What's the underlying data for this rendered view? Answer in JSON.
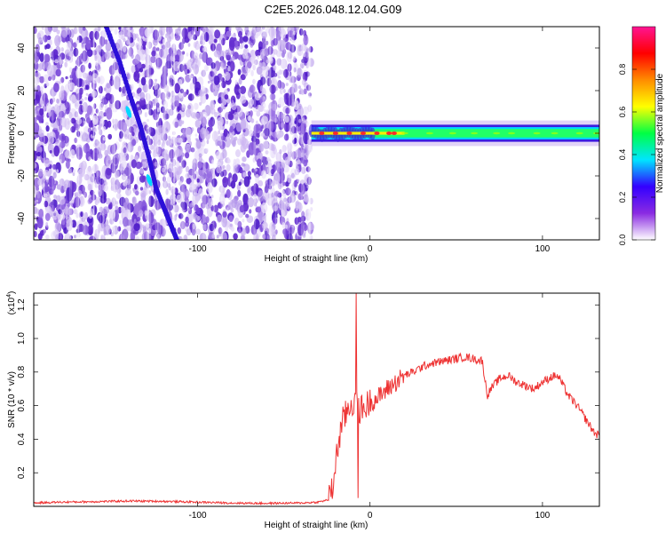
{
  "figure_title": "C2E5.2026.048.12.04.G09",
  "colorbar": {
    "label": "Normalized spectral amplitude",
    "ticks": [
      "0.0",
      "0.2",
      "0.4",
      "0.6",
      "0.8"
    ],
    "tick_values": [
      0.0,
      0.2,
      0.4,
      0.6,
      0.8
    ],
    "range": [
      0.0,
      1.0
    ],
    "colormap": [
      "#ffffff",
      "#8a2be2",
      "#3300ff",
      "#00e5ff",
      "#00ff44",
      "#ffff00",
      "#ff8c00",
      "#ff0000",
      "#ff1493"
    ]
  },
  "chart_data": [
    {
      "type": "heatmap",
      "title": "",
      "xlabel": "Height of straight line (km)",
      "ylabel": "Frequency (Hz)",
      "xlim": [
        -195,
        133
      ],
      "ylim": [
        -50,
        50
      ],
      "x_ticks": [
        -100,
        0,
        100
      ],
      "x_tick_labels": [
        "-100",
        "0",
        "100"
      ],
      "y_ticks": [
        -40,
        -20,
        0,
        20,
        40
      ],
      "y_tick_labels": [
        "-40",
        "-20",
        "0",
        "20",
        "40"
      ],
      "noise_region_x": [
        -195,
        -34
      ],
      "signal_band": {
        "x": [
          -34,
          133
        ],
        "center_hz": 0,
        "halfwidth_hz": 2.5,
        "peak_points_x": [
          -28,
          -20,
          -12,
          -4,
          4,
          11,
          14
        ]
      },
      "meteor_streak": {
        "points": [
          [
            -153,
            50
          ],
          [
            -145,
            33
          ],
          [
            -138,
            15
          ],
          [
            -133,
            3
          ],
          [
            -128,
            -12
          ],
          [
            -124,
            -26
          ],
          [
            -118,
            -38
          ],
          [
            -112,
            -50
          ]
        ],
        "bright_segments": [
          [
            -140,
            10
          ],
          [
            -128,
            -22
          ]
        ]
      },
      "colors": {
        "noise": "#6a2cd6",
        "band": "#22ff66",
        "band_core": "#ff2a2a"
      }
    },
    {
      "type": "line",
      "title": "",
      "xlabel": "Height of straight line (km)",
      "ylabel": "SNR (10 * v/v)",
      "y_scale_label": "(x10",
      "y_scale_exponent": "4",
      "xlim": [
        -195,
        133
      ],
      "ylim": [
        0,
        1.27
      ],
      "x_ticks": [
        -100,
        0,
        100
      ],
      "x_tick_labels": [
        "-100",
        "0",
        "100"
      ],
      "y_ticks": [
        0.2,
        0.4,
        0.6,
        0.8,
        1.0,
        1.2
      ],
      "y_tick_labels": [
        "0.2",
        "0.4",
        "0.6",
        "0.8",
        "1.0",
        "1.2"
      ],
      "series": [
        {
          "color": "#ee3333",
          "x": [
            -195,
            -180,
            -160,
            -140,
            -120,
            -100,
            -80,
            -60,
            -40,
            -30,
            -24,
            -22,
            -20,
            -18,
            -16,
            -14,
            -12,
            -10,
            -8,
            -6,
            -4,
            0,
            5,
            10,
            15,
            20,
            25,
            30,
            35,
            40,
            45,
            50,
            55,
            60,
            63,
            65,
            66,
            68,
            70,
            75,
            80,
            85,
            90,
            95,
            100,
            105,
            108,
            110,
            112,
            115,
            120,
            125,
            130,
            133
          ],
          "y": [
            0.02,
            0.025,
            0.028,
            0.032,
            0.03,
            0.025,
            0.02,
            0.018,
            0.02,
            0.025,
            0.04,
            0.09,
            0.25,
            0.4,
            0.5,
            0.55,
            0.6,
            0.62,
            0.6,
            0.58,
            0.58,
            0.62,
            0.65,
            0.7,
            0.74,
            0.78,
            0.8,
            0.83,
            0.85,
            0.86,
            0.87,
            0.88,
            0.89,
            0.88,
            0.87,
            0.87,
            0.8,
            0.66,
            0.7,
            0.76,
            0.78,
            0.74,
            0.72,
            0.7,
            0.74,
            0.77,
            0.78,
            0.76,
            0.72,
            0.66,
            0.6,
            0.52,
            0.44,
            0.42
          ]
        }
      ],
      "spike": {
        "x": -8,
        "y": 1.27
      }
    }
  ]
}
